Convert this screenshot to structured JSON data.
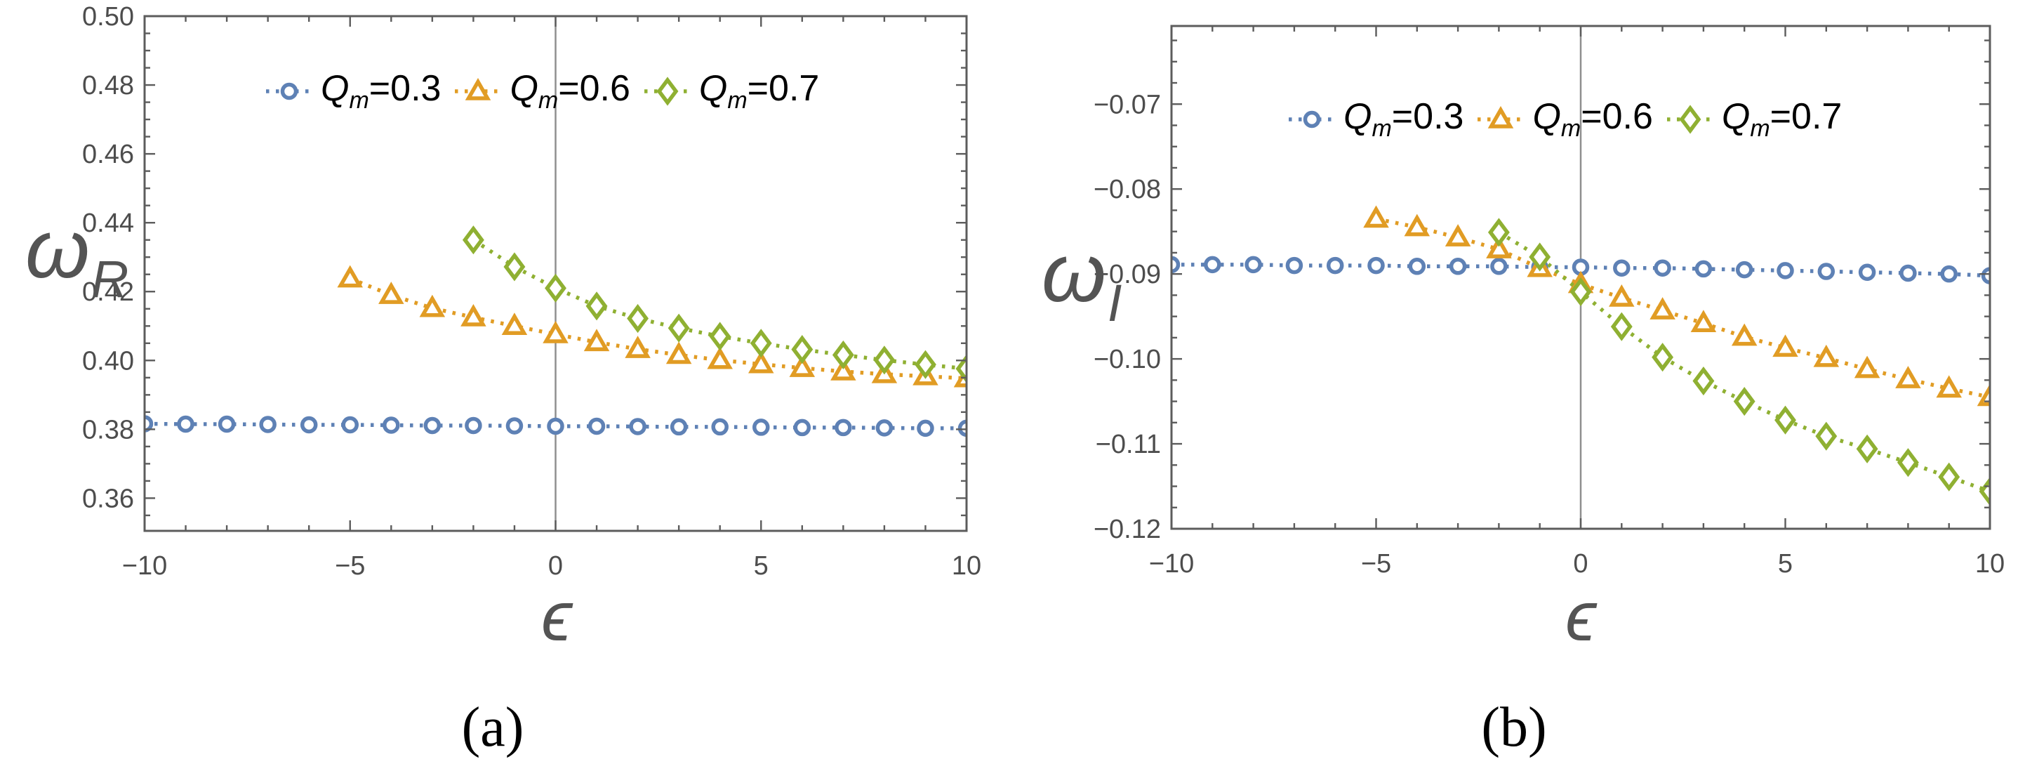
{
  "figure": {
    "background": "#ffffff",
    "frame_color": "#5c5c5c",
    "tick_label_color": "#4d4d4d",
    "axis_label_color": "#545454",
    "zero_line_color": "#8f8f8f",
    "caption_color": "#000000",
    "series_colors": {
      "blue": "#5e81b5",
      "orange": "#e19c24",
      "green": "#8fb032"
    }
  },
  "legend": {
    "items": [
      {
        "marker": "circle",
        "color": "#5e81b5",
        "label_q": "Q",
        "label_sub": "m",
        "label_eq": "=0.3"
      },
      {
        "marker": "triangle",
        "color": "#e19c24",
        "label_q": "Q",
        "label_sub": "m",
        "label_eq": "=0.6"
      },
      {
        "marker": "diamond",
        "color": "#8fb032",
        "label_q": "Q",
        "label_sub": "m",
        "label_eq": "=0.7"
      }
    ]
  },
  "chart_data": [
    {
      "id": "a",
      "type": "scatter",
      "caption": "(a)",
      "xlabel": "ϵ",
      "ylabel": {
        "base": "ω",
        "sub": "R"
      },
      "xlim": [
        -10,
        10
      ],
      "ylim": [
        0.3505,
        0.5
      ],
      "x_major_ticks": [
        -10,
        -5,
        0,
        5,
        10
      ],
      "x_major_labels": [
        "−10",
        "−5",
        "0",
        "5",
        "10"
      ],
      "x_minor_step": 1,
      "y_major_ticks": [
        0.36,
        0.38,
        0.4,
        0.42,
        0.44,
        0.46,
        0.48,
        0.5
      ],
      "y_major_labels": [
        "0.36",
        "0.38",
        "0.40",
        "0.42",
        "0.44",
        "0.46",
        "0.48",
        "0.50"
      ],
      "y_minor_step": 0.005,
      "zero_line_x": 0,
      "grid": false,
      "legend_position": "top-center",
      "series": [
        {
          "name": "Qm=0.3",
          "marker": "circle",
          "color": "#5e81b5",
          "x": [
            -10,
            -9,
            -8,
            -7,
            -6,
            -5,
            -4,
            -3,
            -2,
            -1,
            0,
            1,
            2,
            3,
            4,
            5,
            6,
            7,
            8,
            9,
            10
          ],
          "y": [
            0.3816,
            0.3815,
            0.3815,
            0.3814,
            0.3813,
            0.3813,
            0.3812,
            0.3811,
            0.3811,
            0.381,
            0.3809,
            0.3809,
            0.3808,
            0.3807,
            0.3807,
            0.3806,
            0.3805,
            0.3805,
            0.3804,
            0.3803,
            0.3803
          ]
        },
        {
          "name": "Qm=0.6",
          "marker": "triangle",
          "color": "#e19c24",
          "x": [
            -5,
            -4,
            -3,
            -2,
            -1,
            0,
            1,
            2,
            3,
            4,
            5,
            6,
            7,
            8,
            9,
            10
          ],
          "y": [
            0.4238,
            0.419,
            0.4152,
            0.4125,
            0.41,
            0.4076,
            0.4053,
            0.4033,
            0.4016,
            0.4001,
            0.3989,
            0.3978,
            0.3968,
            0.396,
            0.3954,
            0.3948
          ]
        },
        {
          "name": "Qm=0.7",
          "marker": "diamond",
          "color": "#8fb032",
          "x": [
            -2,
            -1,
            0,
            1,
            2,
            3,
            4,
            5,
            6,
            7,
            8,
            9,
            10
          ],
          "y": [
            0.435,
            0.4272,
            0.421,
            0.4158,
            0.4122,
            0.4094,
            0.407,
            0.405,
            0.4032,
            0.4016,
            0.4001,
            0.3988,
            0.3976
          ]
        }
      ]
    },
    {
      "id": "b",
      "type": "scatter",
      "caption": "(b)",
      "xlabel": "ϵ",
      "ylabel": {
        "base": "ω",
        "sub": "I"
      },
      "xlim": [
        -10,
        10
      ],
      "ylim": [
        -0.12,
        -0.0608
      ],
      "x_major_ticks": [
        -10,
        -5,
        0,
        5,
        10
      ],
      "x_major_labels": [
        "−10",
        "−5",
        "0",
        "5",
        "10"
      ],
      "x_minor_step": 1,
      "y_major_ticks": [
        -0.07,
        -0.08,
        -0.09,
        -0.1,
        -0.11,
        -0.12
      ],
      "y_major_labels": [
        "−0.07",
        "−0.08",
        "−0.09",
        "−0.10",
        "−0.11",
        "−0.12"
      ],
      "y_minor_step": 0.0025,
      "zero_line_x": 0,
      "grid": false,
      "legend_position": "top-center",
      "series": [
        {
          "name": "Qm=0.3",
          "marker": "circle",
          "color": "#5e81b5",
          "x": [
            -10,
            -9,
            -8,
            -7,
            -6,
            -5,
            -4,
            -3,
            -2,
            -1,
            0,
            1,
            2,
            3,
            4,
            5,
            6,
            7,
            8,
            9,
            10
          ],
          "y": [
            -0.0889,
            -0.0889,
            -0.0889,
            -0.089,
            -0.089,
            -0.089,
            -0.0891,
            -0.0891,
            -0.0891,
            -0.0892,
            -0.0892,
            -0.0893,
            -0.0893,
            -0.0894,
            -0.0895,
            -0.0896,
            -0.0897,
            -0.0898,
            -0.0899,
            -0.09,
            -0.0902
          ]
        },
        {
          "name": "Qm=0.6",
          "marker": "triangle",
          "color": "#e19c24",
          "x": [
            -5,
            -4,
            -3,
            -2,
            -1,
            0,
            1,
            2,
            3,
            4,
            5,
            6,
            7,
            8,
            9,
            10
          ],
          "y": [
            -0.0835,
            -0.0845,
            -0.0857,
            -0.0871,
            -0.0893,
            -0.0912,
            -0.0928,
            -0.0943,
            -0.0958,
            -0.0974,
            -0.0987,
            -0.0999,
            -0.1012,
            -0.1024,
            -0.1035,
            -0.1045
          ]
        },
        {
          "name": "Qm=0.7",
          "marker": "diamond",
          "color": "#8fb032",
          "x": [
            -2,
            -1,
            0,
            1,
            2,
            3,
            4,
            5,
            6,
            7,
            8,
            9,
            10
          ],
          "y": [
            -0.0851,
            -0.088,
            -0.0921,
            -0.0962,
            -0.0998,
            -0.1026,
            -0.105,
            -0.1072,
            -0.1091,
            -0.1106,
            -0.1122,
            -0.1139,
            -0.1156
          ]
        }
      ]
    }
  ]
}
